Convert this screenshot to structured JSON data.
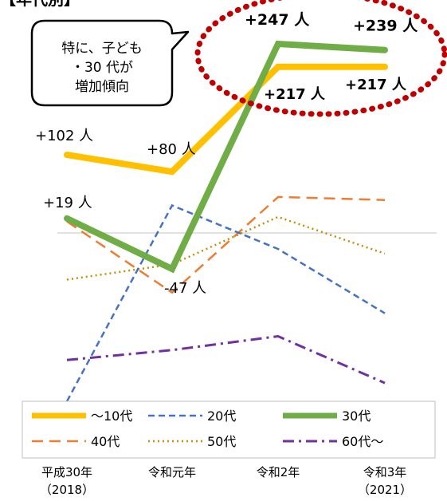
{
  "header": {
    "title": "【年代別】"
  },
  "callout": {
    "line1": "特に、子ども",
    "line2": "・30 代が",
    "line3": "増加傾向"
  },
  "chart_data": {
    "type": "line",
    "categories": [
      "平成30年\n（2018）",
      "令和元年",
      "令和2年",
      "令和3年\n（2021）"
    ],
    "x_labels": [
      {
        "line1": "平成30年",
        "line2": "（2018）"
      },
      {
        "line1": "令和元年",
        "line2": ""
      },
      {
        "line1": "令和2年",
        "line2": ""
      },
      {
        "line1": "令和3年",
        "line2": "（2021）"
      }
    ],
    "ylim": [
      -220,
      270
    ],
    "grid": false,
    "baseline": 0,
    "legend_position": "bottom",
    "series": [
      {
        "name": "～10代",
        "values": [
          102,
          80,
          217,
          217
        ],
        "color": "#ffc000",
        "width": 8,
        "dash": ""
      },
      {
        "name": "20代",
        "values": [
          -220,
          36,
          -21,
          -105
        ],
        "color": "#4472c4",
        "width": 2.5,
        "dash": "8 5"
      },
      {
        "name": "30代",
        "values": [
          19,
          -47,
          247,
          239
        ],
        "color": "#70ad47",
        "width": 8,
        "dash": ""
      },
      {
        "name": "40代",
        "values": [
          15,
          -78,
          47,
          43
        ],
        "color": "#ed7d31",
        "width": 2.5,
        "dash": "14 8"
      },
      {
        "name": "50代",
        "values": [
          -61,
          -41,
          21,
          -27
        ],
        "color": "#bf9000",
        "width": 2.5,
        "dash": "2 4"
      },
      {
        "name": "60代～",
        "values": [
          -166,
          -153,
          -135,
          -196
        ],
        "color": "#7030a0",
        "width": 3,
        "dash": "14 6 3 6"
      }
    ],
    "annotations": [
      {
        "text": "+102 人",
        "series": "～10代",
        "point": 0
      },
      {
        "text": "+80 人",
        "series": "～10代",
        "point": 1
      },
      {
        "text": "+217 人",
        "series": "～10代",
        "point": 2
      },
      {
        "text": "+217 人",
        "series": "～10代",
        "point": 3
      },
      {
        "text": "+19 人",
        "series": "30代",
        "point": 0
      },
      {
        "text": "-47 人",
        "series": "30代",
        "point": 1
      },
      {
        "text": "+247 人",
        "series": "30代",
        "point": 2
      },
      {
        "text": "+239 人",
        "series": "30代",
        "point": 3
      }
    ]
  },
  "colors": {
    "highlight_ellipse": "#c00000",
    "baseline": "#d9d9d9",
    "legend_border": "#bfbfbf",
    "text": "#000000"
  }
}
